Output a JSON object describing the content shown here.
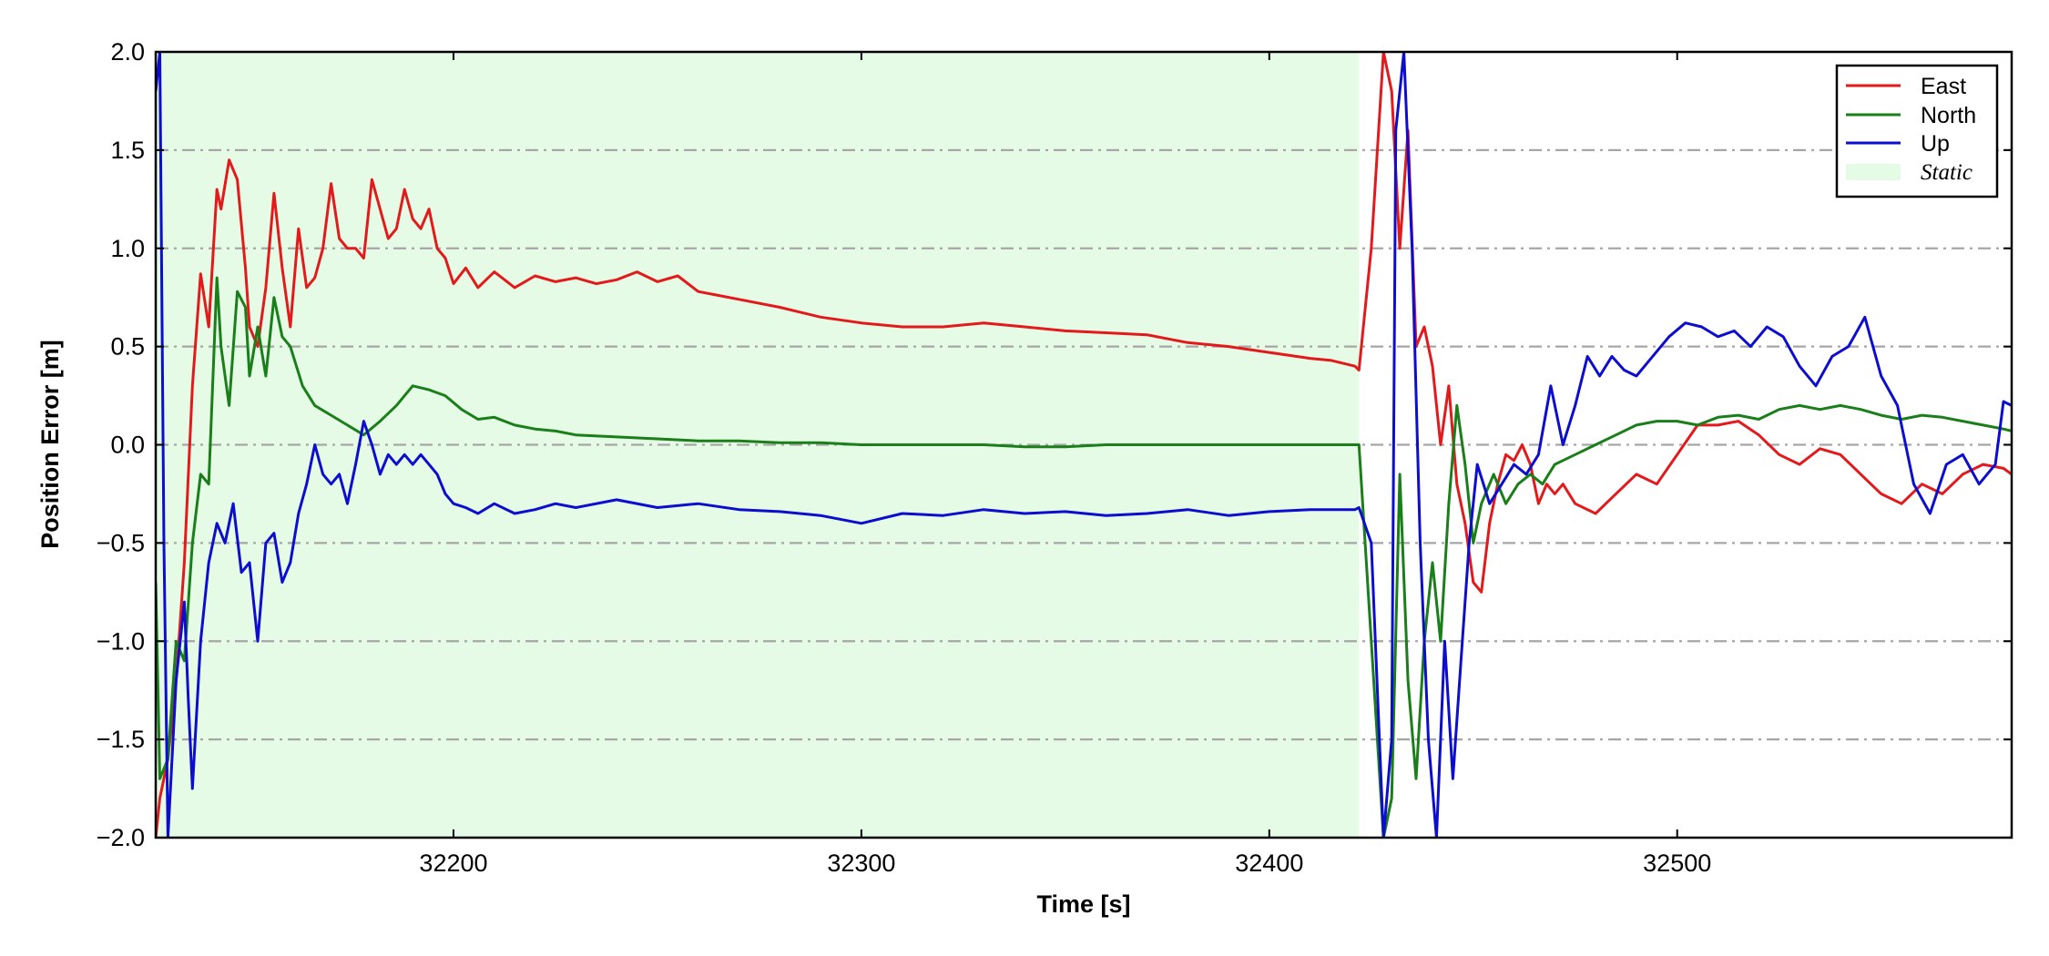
{
  "chart_data": {
    "type": "line",
    "xlabel": "Time [s]",
    "ylabel": "Position Error [m]",
    "xlim": [
      32127,
      32582
    ],
    "ylim": [
      -2.0,
      2.0
    ],
    "x_ticks": [
      32200,
      32300,
      32400,
      32500
    ],
    "y_ticks": [
      2.0,
      1.5,
      1.0,
      0.5,
      0.0,
      -0.5,
      -1.0,
      -1.5,
      -2.0
    ],
    "y_tick_labels": [
      "2.0",
      "1.5",
      "1.0",
      "0.5",
      "0.0",
      "−0.5",
      "−1.0",
      "−1.5",
      "−2.0"
    ],
    "grid": "horizontal dash-dot",
    "legend_placement": "top-right",
    "static_region": {
      "label": "Static",
      "x_start": 32127,
      "x_end": 32422,
      "color": "#e6fbe6"
    },
    "series": [
      {
        "name": "East",
        "color": "#e31a1c",
        "x": [
          32127,
          32128,
          32130,
          32132,
          32134,
          32136,
          32138,
          32140,
          32142,
          32143,
          32145,
          32147,
          32149,
          32150,
          32152,
          32154,
          32156,
          32158,
          32160,
          32162,
          32164,
          32166,
          32168,
          32170,
          32172,
          32174,
          32176,
          32178,
          32180,
          32182,
          32184,
          32186,
          32188,
          32190,
          32192,
          32194,
          32196,
          32198,
          32200,
          32203,
          32206,
          32210,
          32215,
          32220,
          32225,
          32230,
          32235,
          32240,
          32245,
          32250,
          32255,
          32260,
          32265,
          32270,
          32280,
          32290,
          32300,
          32310,
          32320,
          32330,
          32340,
          32350,
          32360,
          32370,
          32380,
          32390,
          32400,
          32410,
          32415,
          32421,
          32422,
          32425,
          32428,
          32430,
          32432,
          32434,
          32436,
          32438,
          32440,
          32442,
          32444,
          32446,
          32448,
          32450,
          32452,
          32454,
          32456,
          32458,
          32460,
          32462,
          32464,
          32466,
          32468,
          32470,
          32472,
          32475,
          32480,
          32485,
          32490,
          32495,
          32500,
          32505,
          32510,
          32515,
          32520,
          32525,
          32530,
          32535,
          32540,
          32545,
          32550,
          32555,
          32560,
          32565,
          32570,
          32575,
          32580,
          32582
        ],
        "y": [
          -2.0,
          -1.8,
          -1.6,
          -1.2,
          -0.6,
          0.3,
          0.87,
          0.6,
          1.3,
          1.2,
          1.45,
          1.35,
          0.9,
          0.6,
          0.5,
          0.8,
          1.28,
          0.9,
          0.6,
          1.1,
          0.8,
          0.85,
          1.0,
          1.33,
          1.05,
          1.0,
          1.0,
          0.95,
          1.35,
          1.2,
          1.05,
          1.1,
          1.3,
          1.15,
          1.1,
          1.2,
          1.0,
          0.95,
          0.82,
          0.9,
          0.8,
          0.88,
          0.8,
          0.86,
          0.83,
          0.85,
          0.82,
          0.84,
          0.88,
          0.83,
          0.86,
          0.78,
          0.76,
          0.74,
          0.7,
          0.65,
          0.62,
          0.6,
          0.6,
          0.62,
          0.6,
          0.58,
          0.57,
          0.56,
          0.52,
          0.5,
          0.47,
          0.44,
          0.43,
          0.4,
          0.38,
          1.0,
          2.0,
          1.8,
          1.0,
          1.6,
          0.5,
          0.6,
          0.4,
          0.0,
          0.3,
          -0.2,
          -0.4,
          -0.7,
          -0.75,
          -0.4,
          -0.2,
          -0.05,
          -0.08,
          0.0,
          -0.1,
          -0.3,
          -0.2,
          -0.25,
          -0.2,
          -0.3,
          -0.35,
          -0.25,
          -0.15,
          -0.2,
          -0.05,
          0.1,
          0.1,
          0.12,
          0.05,
          -0.05,
          -0.1,
          -0.02,
          -0.05,
          -0.15,
          -0.25,
          -0.3,
          -0.2,
          -0.25,
          -0.15,
          -0.1,
          -0.12,
          -0.15
        ]
      },
      {
        "name": "North",
        "color": "#1a7f1a",
        "x": [
          32127,
          32128,
          32130,
          32132,
          32134,
          32136,
          32138,
          32140,
          32142,
          32143,
          32145,
          32147,
          32149,
          32150,
          32152,
          32154,
          32156,
          32158,
          32160,
          32163,
          32166,
          32170,
          32174,
          32178,
          32182,
          32186,
          32190,
          32194,
          32198,
          32202,
          32206,
          32210,
          32215,
          32220,
          32225,
          32230,
          32240,
          32250,
          32260,
          32270,
          32280,
          32290,
          32300,
          32310,
          32320,
          32330,
          32340,
          32350,
          32360,
          32370,
          32380,
          32390,
          32400,
          32410,
          32421,
          32422,
          32425,
          32428,
          32430,
          32432,
          32434,
          32436,
          32438,
          32440,
          32442,
          32444,
          32446,
          32448,
          32450,
          32452,
          32455,
          32458,
          32461,
          32464,
          32467,
          32470,
          32475,
          32480,
          32485,
          32490,
          32495,
          32500,
          32505,
          32510,
          32515,
          32520,
          32525,
          32530,
          32535,
          32540,
          32545,
          32550,
          32555,
          32560,
          32565,
          32570,
          32575,
          32580,
          32582
        ],
        "y": [
          -0.7,
          -1.7,
          -1.6,
          -1.0,
          -1.1,
          -0.5,
          -0.15,
          -0.2,
          0.85,
          0.5,
          0.2,
          0.78,
          0.7,
          0.35,
          0.6,
          0.35,
          0.75,
          0.55,
          0.5,
          0.3,
          0.2,
          0.15,
          0.1,
          0.05,
          0.12,
          0.2,
          0.3,
          0.28,
          0.25,
          0.18,
          0.13,
          0.14,
          0.1,
          0.08,
          0.07,
          0.05,
          0.04,
          0.03,
          0.02,
          0.02,
          0.01,
          0.01,
          0.0,
          0.0,
          0.0,
          0.0,
          -0.01,
          -0.01,
          0.0,
          0.0,
          0.0,
          0.0,
          0.0,
          0.0,
          0.0,
          0.0,
          -1.0,
          -2.0,
          -1.8,
          -0.15,
          -1.2,
          -1.7,
          -1.0,
          -0.6,
          -1.0,
          -0.3,
          0.2,
          -0.1,
          -0.5,
          -0.3,
          -0.15,
          -0.3,
          -0.2,
          -0.15,
          -0.2,
          -0.1,
          -0.05,
          0.0,
          0.05,
          0.1,
          0.12,
          0.12,
          0.1,
          0.14,
          0.15,
          0.13,
          0.18,
          0.2,
          0.18,
          0.2,
          0.18,
          0.15,
          0.13,
          0.15,
          0.14,
          0.12,
          0.1,
          0.08,
          0.07
        ]
      },
      {
        "name": "Up",
        "color": "#0d0dd0",
        "x": [
          32127,
          32128,
          32129,
          32130,
          32132,
          32134,
          32135,
          32136,
          32138,
          32140,
          32142,
          32144,
          32146,
          32148,
          32150,
          32152,
          32154,
          32156,
          32158,
          32160,
          32162,
          32164,
          32166,
          32168,
          32170,
          32172,
          32174,
          32176,
          32178,
          32180,
          32182,
          32184,
          32186,
          32188,
          32190,
          32192,
          32194,
          32196,
          32198,
          32200,
          32203,
          32206,
          32210,
          32215,
          32220,
          32225,
          32230,
          32240,
          32250,
          32260,
          32270,
          32280,
          32290,
          32300,
          32310,
          32320,
          32330,
          32340,
          32350,
          32360,
          32370,
          32380,
          32390,
          32400,
          32410,
          32421,
          32422,
          32425,
          32428,
          32430,
          32431,
          32433,
          32435,
          32437,
          32439,
          32441,
          32443,
          32445,
          32447,
          32449,
          32451,
          32454,
          32457,
          32460,
          32463,
          32466,
          32469,
          32472,
          32475,
          32478,
          32481,
          32484,
          32487,
          32490,
          32494,
          32498,
          32502,
          32506,
          32510,
          32514,
          32518,
          32522,
          32526,
          32530,
          32534,
          32538,
          32542,
          32546,
          32550,
          32554,
          32558,
          32562,
          32566,
          32570,
          32574,
          32578,
          32580,
          32582
        ],
        "y": [
          1.8,
          2.0,
          -0.5,
          -2.0,
          -1.2,
          -0.8,
          -1.3,
          -1.75,
          -1.0,
          -0.6,
          -0.4,
          -0.5,
          -0.3,
          -0.65,
          -0.6,
          -1.0,
          -0.5,
          -0.45,
          -0.7,
          -0.6,
          -0.35,
          -0.2,
          0.0,
          -0.15,
          -0.2,
          -0.15,
          -0.3,
          -0.1,
          0.12,
          0.0,
          -0.15,
          -0.05,
          -0.1,
          -0.05,
          -0.1,
          -0.05,
          -0.1,
          -0.15,
          -0.25,
          -0.3,
          -0.32,
          -0.35,
          -0.3,
          -0.35,
          -0.33,
          -0.3,
          -0.32,
          -0.28,
          -0.32,
          -0.3,
          -0.33,
          -0.34,
          -0.36,
          -0.4,
          -0.35,
          -0.36,
          -0.33,
          -0.35,
          -0.34,
          -0.36,
          -0.35,
          -0.33,
          -0.36,
          -0.34,
          -0.33,
          -0.33,
          -0.32,
          -0.5,
          -2.0,
          -1.5,
          1.6,
          2.0,
          1.0,
          -0.5,
          -1.5,
          -2.0,
          -1.0,
          -1.7,
          -1.1,
          -0.5,
          -0.1,
          -0.3,
          -0.2,
          -0.1,
          -0.15,
          -0.05,
          0.3,
          0.0,
          0.2,
          0.45,
          0.35,
          0.45,
          0.38,
          0.35,
          0.45,
          0.55,
          0.62,
          0.6,
          0.55,
          0.58,
          0.5,
          0.6,
          0.55,
          0.4,
          0.3,
          0.45,
          0.5,
          0.65,
          0.35,
          0.2,
          -0.2,
          -0.35,
          -0.1,
          -0.05,
          -0.2,
          -0.1,
          0.22,
          0.2
        ]
      }
    ]
  }
}
